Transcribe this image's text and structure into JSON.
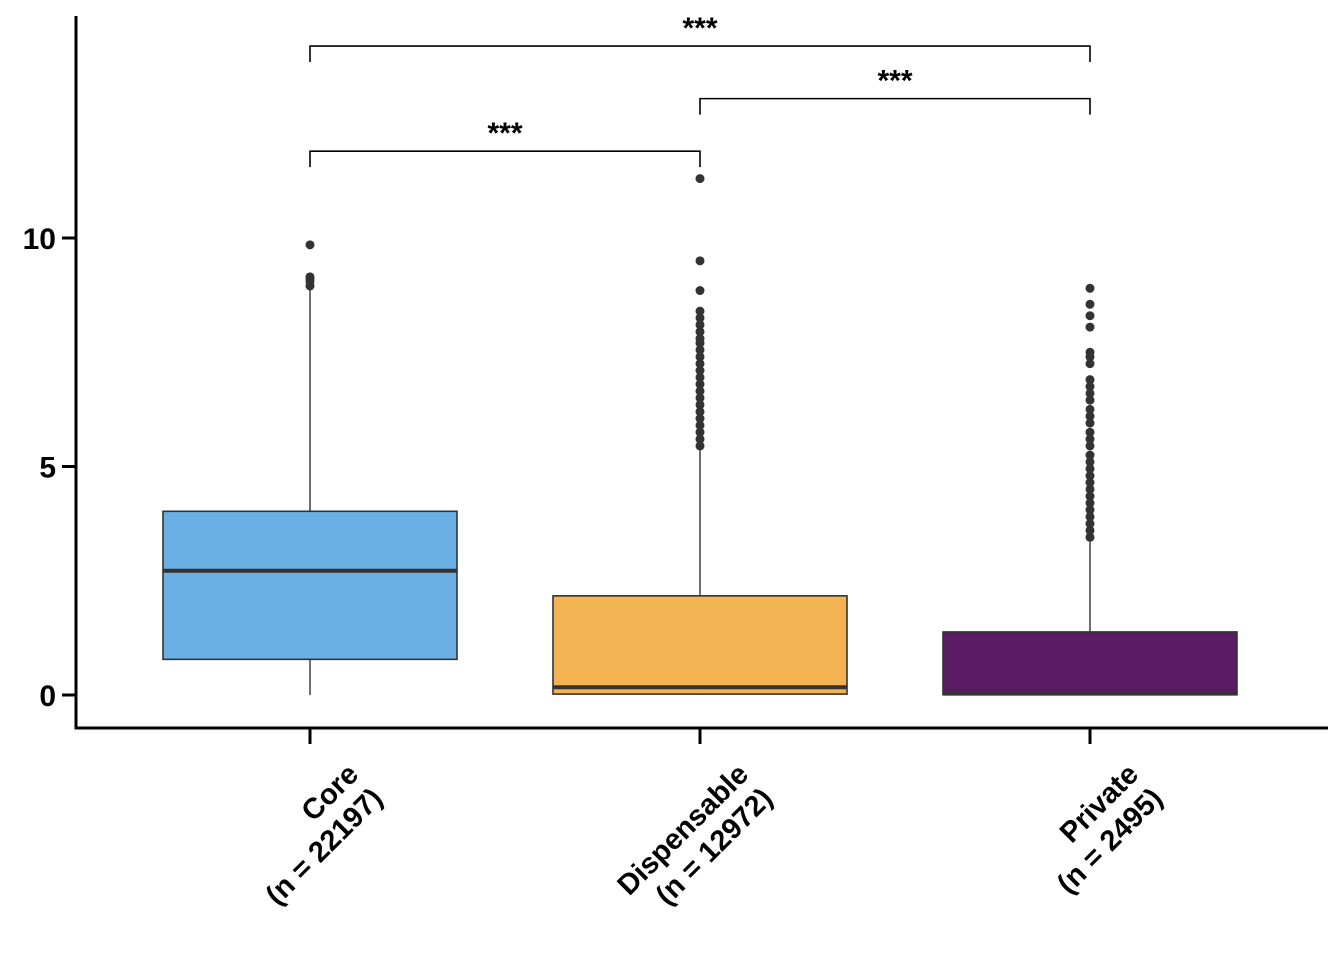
{
  "chart_data": {
    "type": "box",
    "title": "",
    "xlabel": "",
    "ylabel": "",
    "ylim": [
      -0.7,
      14.9
    ],
    "yticks": [
      0,
      5,
      10
    ],
    "categories": [
      {
        "name": "Core",
        "n_label": "(n = 22197)",
        "color": "#6AB0E5",
        "q1": 0.78,
        "median": 2.72,
        "q3": 4.02,
        "whisker_low": 0,
        "whisker_high": 8.9,
        "outliers": [
          8.95,
          9.05,
          9.1,
          9.15,
          9.85
        ]
      },
      {
        "name": "Dispensable",
        "n_label": "(n = 12972)",
        "color": "#F4B353",
        "q1": 0.02,
        "median": 0.17,
        "q3": 2.17,
        "whisker_low": 0,
        "whisker_high": 5.38,
        "outliers": [
          5.45,
          5.6,
          5.75,
          5.9,
          6.05,
          6.2,
          6.35,
          6.5,
          6.65,
          6.8,
          6.95,
          7.1,
          7.25,
          7.4,
          7.55,
          7.7,
          7.8,
          7.95,
          8.1,
          8.25,
          8.4,
          8.85,
          9.5,
          11.3
        ]
      },
      {
        "name": "Private",
        "n_label": "(n = 2495)",
        "color": "#5B1A64",
        "q1": 0.01,
        "median": 0.03,
        "q3": 1.38,
        "whisker_low": 0,
        "whisker_high": 3.35,
        "outliers": [
          3.45,
          3.6,
          3.75,
          3.9,
          4.05,
          4.2,
          4.35,
          4.5,
          4.65,
          4.8,
          4.95,
          5.1,
          5.25,
          5.45,
          5.6,
          5.75,
          5.95,
          6.1,
          6.25,
          6.45,
          6.6,
          6.75,
          6.9,
          7.25,
          7.4,
          7.5,
          8.05,
          8.3,
          8.55,
          8.9
        ]
      }
    ],
    "significance": [
      {
        "from": 0,
        "to": 1,
        "y": 11.9,
        "label": "***"
      },
      {
        "from": 1,
        "to": 2,
        "y": 13.05,
        "label": "***"
      },
      {
        "from": 0,
        "to": 2,
        "y": 14.2,
        "label": "***"
      }
    ]
  }
}
